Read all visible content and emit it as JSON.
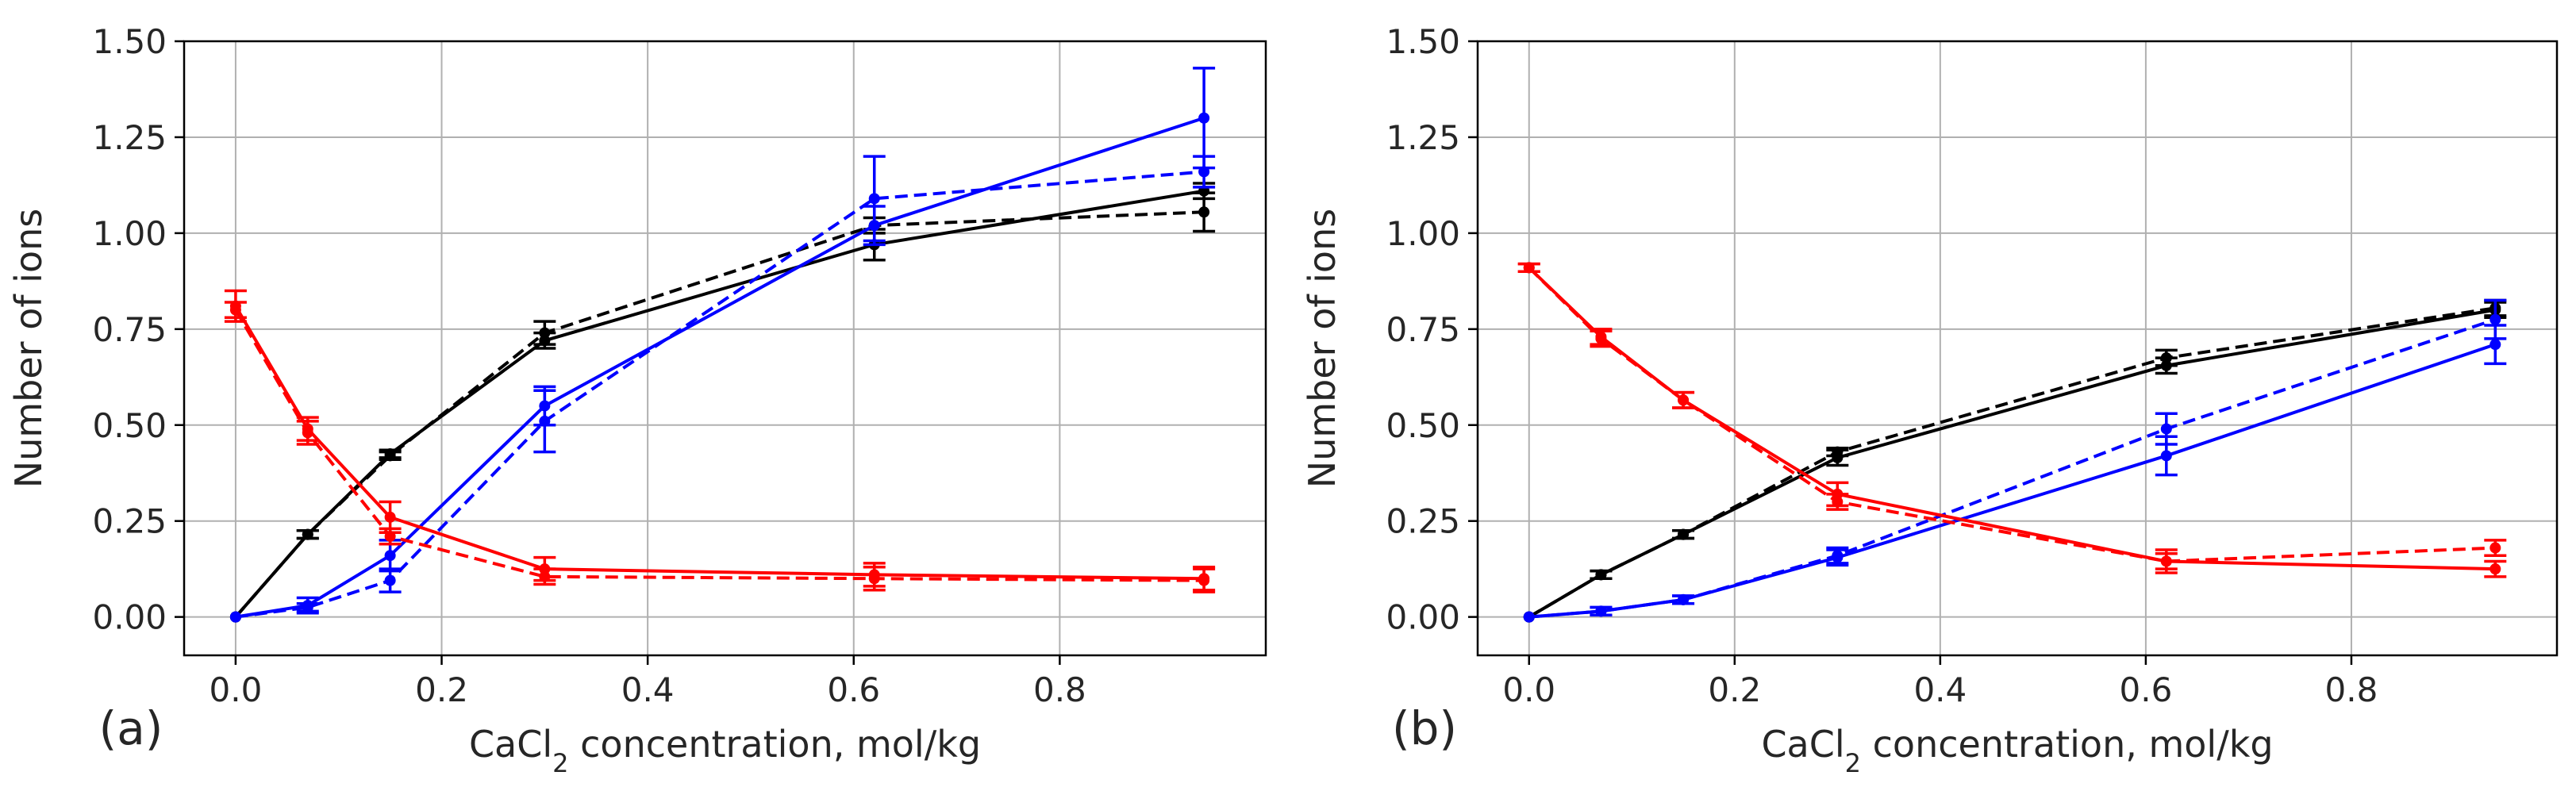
{
  "chart_data": [
    {
      "type": "line",
      "panel_label": "(a)",
      "xlabel_prefix": "CaCl",
      "xlabel_subscript": "2",
      "xlabel_suffix": " concentration, mol/kg",
      "ylabel": "Number of ions",
      "xlim": [
        -0.05,
        1.0
      ],
      "ylim": [
        -0.1,
        1.5
      ],
      "xticks": [
        0.0,
        0.2,
        0.4,
        0.6,
        0.8
      ],
      "xtick_labels": [
        "0.0",
        "0.2",
        "0.4",
        "0.6",
        "0.8"
      ],
      "yticks": [
        0.0,
        0.25,
        0.5,
        0.75,
        1.0,
        1.25,
        1.5
      ],
      "ytick_labels": [
        "0.00",
        "0.25",
        "0.50",
        "0.75",
        "1.00",
        "1.25",
        "1.50"
      ],
      "grid": true,
      "x": [
        0.0,
        0.07,
        0.15,
        0.3,
        0.62,
        0.94
      ],
      "series": [
        {
          "name": "black solid",
          "color": "#000000",
          "dash": "solid",
          "values": [
            0.0,
            0.215,
            0.425,
            0.72,
            0.97,
            1.11
          ],
          "errors": [
            0.0,
            0.01,
            0.01,
            0.02,
            0.04,
            0.02
          ]
        },
        {
          "name": "black dashed",
          "color": "#000000",
          "dash": "dashed",
          "values": [
            0.0,
            0.215,
            0.42,
            0.74,
            1.02,
            1.055
          ],
          "errors": [
            0.0,
            0.01,
            0.01,
            0.03,
            0.02,
            0.05
          ]
        },
        {
          "name": "blue solid",
          "color": "#0000ff",
          "dash": "solid",
          "values": [
            0.0,
            0.03,
            0.16,
            0.55,
            1.02,
            1.3
          ],
          "errors": [
            0.0,
            0.02,
            0.04,
            0.05,
            0.05,
            0.13
          ]
        },
        {
          "name": "blue dashed",
          "color": "#0000ff",
          "dash": "dashed",
          "values": [
            0.0,
            0.025,
            0.095,
            0.51,
            1.09,
            1.16
          ],
          "errors": [
            0.0,
            0.01,
            0.03,
            0.08,
            0.11,
            0.04
          ]
        },
        {
          "name": "red solid",
          "color": "#ff0000",
          "dash": "solid",
          "values": [
            0.81,
            0.49,
            0.26,
            0.125,
            0.11,
            0.1
          ],
          "errors": [
            0.04,
            0.03,
            0.04,
            0.03,
            0.03,
            0.03
          ]
        },
        {
          "name": "red dashed",
          "color": "#ff0000",
          "dash": "dashed",
          "values": [
            0.8,
            0.48,
            0.21,
            0.105,
            0.1,
            0.095
          ],
          "errors": [
            0.02,
            0.03,
            0.02,
            0.02,
            0.03,
            0.03
          ]
        }
      ]
    },
    {
      "type": "line",
      "panel_label": "(b)",
      "xlabel_prefix": "CaCl",
      "xlabel_subscript": "2",
      "xlabel_suffix": " concentration, mol/kg",
      "ylabel": "Number of ions",
      "xlim": [
        -0.05,
        1.0
      ],
      "ylim": [
        -0.1,
        1.5
      ],
      "xticks": [
        0.0,
        0.2,
        0.4,
        0.6,
        0.8
      ],
      "xtick_labels": [
        "0.0",
        "0.2",
        "0.4",
        "0.6",
        "0.8"
      ],
      "yticks": [
        0.0,
        0.25,
        0.5,
        0.75,
        1.0,
        1.25,
        1.5
      ],
      "ytick_labels": [
        "0.00",
        "0.25",
        "0.50",
        "0.75",
        "1.00",
        "1.25",
        "1.50"
      ],
      "grid": true,
      "x": [
        0.0,
        0.07,
        0.15,
        0.3,
        0.62,
        0.94
      ],
      "series": [
        {
          "name": "black solid",
          "color": "#000000",
          "dash": "solid",
          "values": [
            0.0,
            0.11,
            0.215,
            0.415,
            0.655,
            0.8
          ],
          "errors": [
            0.0,
            0.01,
            0.01,
            0.02,
            0.02,
            0.02
          ]
        },
        {
          "name": "black dashed",
          "color": "#000000",
          "dash": "dashed",
          "values": [
            0.0,
            0.11,
            0.215,
            0.43,
            0.675,
            0.805
          ],
          "errors": [
            0.0,
            0.01,
            0.01,
            0.01,
            0.02,
            0.02
          ]
        },
        {
          "name": "blue solid",
          "color": "#0000ff",
          "dash": "solid",
          "values": [
            0.0,
            0.015,
            0.045,
            0.155,
            0.42,
            0.71
          ],
          "errors": [
            0.0,
            0.01,
            0.01,
            0.02,
            0.05,
            0.05
          ]
        },
        {
          "name": "blue dashed",
          "color": "#0000ff",
          "dash": "dashed",
          "values": [
            0.0,
            0.015,
            0.045,
            0.16,
            0.49,
            0.775
          ],
          "errors": [
            0.0,
            0.01,
            0.01,
            0.02,
            0.04,
            0.05
          ]
        },
        {
          "name": "red solid",
          "color": "#ff0000",
          "dash": "solid",
          "values": [
            0.91,
            0.73,
            0.565,
            0.32,
            0.145,
            0.125
          ],
          "errors": [
            0.01,
            0.02,
            0.02,
            0.03,
            0.03,
            0.02
          ]
        },
        {
          "name": "red dashed",
          "color": "#ff0000",
          "dash": "dashed",
          "values": [
            0.91,
            0.725,
            0.565,
            0.3,
            0.145,
            0.18
          ],
          "errors": [
            0.01,
            0.02,
            0.02,
            0.02,
            0.02,
            0.02
          ]
        }
      ]
    }
  ]
}
